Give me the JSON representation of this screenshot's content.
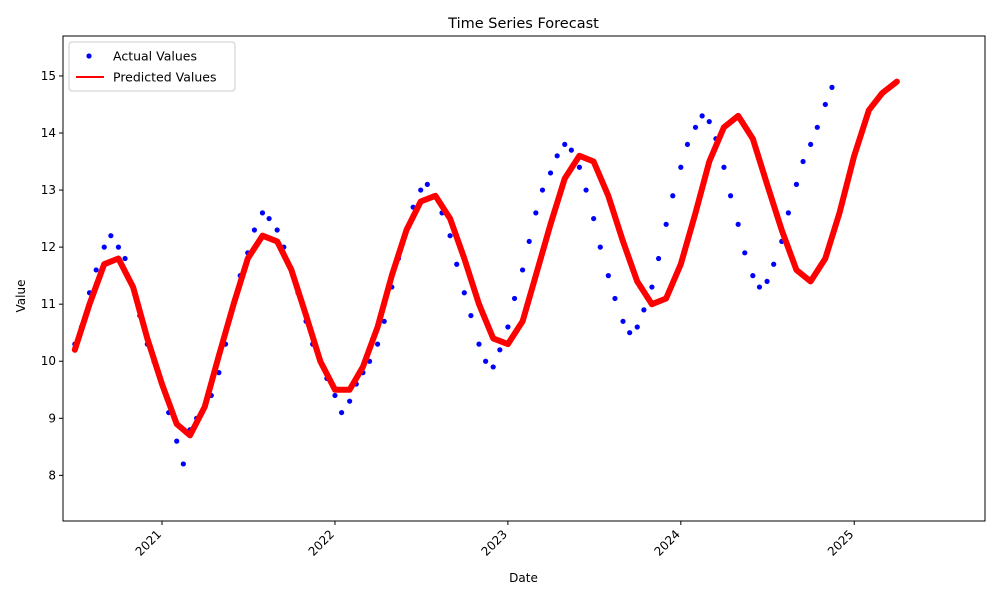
{
  "chart_data": {
    "type": "line",
    "title": "Time Series Forecast",
    "xlabel": "Date",
    "ylabel": "Value",
    "x_range": [
      "2020-06-06",
      "2025-10-04"
    ],
    "ylim": [
      7.2,
      15.7
    ],
    "x_ticks": [
      {
        "date": "2021-01-01",
        "label": "2021"
      },
      {
        "date": "2022-01-01",
        "label": "2022"
      },
      {
        "date": "2023-01-01",
        "label": "2023"
      },
      {
        "date": "2024-01-01",
        "label": "2024"
      },
      {
        "date": "2025-01-01",
        "label": "2025"
      }
    ],
    "y_ticks": [
      8,
      9,
      10,
      11,
      12,
      13,
      14,
      15
    ],
    "grid": false,
    "legend": {
      "placement": "top-left",
      "entries": [
        "Actual Values",
        "Predicted Values"
      ]
    },
    "colors": {
      "actual": "#0000ff",
      "predicted": "#ff0000"
    },
    "series": [
      {
        "name": "Actual Values",
        "marker": "dot",
        "points": [
          [
            "2020-07-01",
            10.3
          ],
          [
            "2020-07-15",
            10.6
          ],
          [
            "2020-08-01",
            11.2
          ],
          [
            "2020-08-15",
            11.6
          ],
          [
            "2020-09-01",
            12.0
          ],
          [
            "2020-09-15",
            12.2
          ],
          [
            "2020-10-01",
            12.0
          ],
          [
            "2020-10-15",
            11.8
          ],
          [
            "2020-11-01",
            11.3
          ],
          [
            "2020-11-15",
            10.8
          ],
          [
            "2020-12-01",
            10.3
          ],
          [
            "2020-12-15",
            10.0
          ],
          [
            "2021-01-01",
            9.6
          ],
          [
            "2021-01-15",
            9.1
          ],
          [
            "2021-02-01",
            8.6
          ],
          [
            "2021-02-15",
            8.2
          ],
          [
            "2021-03-01",
            8.8
          ],
          [
            "2021-03-15",
            9.0
          ],
          [
            "2021-04-01",
            9.2
          ],
          [
            "2021-04-15",
            9.4
          ],
          [
            "2021-05-01",
            9.8
          ],
          [
            "2021-05-15",
            10.3
          ],
          [
            "2021-06-01",
            11.0
          ],
          [
            "2021-06-15",
            11.5
          ],
          [
            "2021-07-01",
            11.9
          ],
          [
            "2021-07-15",
            12.3
          ],
          [
            "2021-08-01",
            12.6
          ],
          [
            "2021-08-15",
            12.5
          ],
          [
            "2021-09-01",
            12.3
          ],
          [
            "2021-09-15",
            12.0
          ],
          [
            "2021-10-01",
            11.6
          ],
          [
            "2021-10-15",
            11.2
          ],
          [
            "2021-11-01",
            10.7
          ],
          [
            "2021-11-15",
            10.3
          ],
          [
            "2021-12-01",
            10.0
          ],
          [
            "2021-12-15",
            9.7
          ],
          [
            "2022-01-01",
            9.4
          ],
          [
            "2022-01-15",
            9.1
          ],
          [
            "2022-02-01",
            9.3
          ],
          [
            "2022-02-15",
            9.6
          ],
          [
            "2022-03-01",
            9.8
          ],
          [
            "2022-03-15",
            10.0
          ],
          [
            "2022-04-01",
            10.3
          ],
          [
            "2022-04-15",
            10.7
          ],
          [
            "2022-05-01",
            11.3
          ],
          [
            "2022-05-15",
            11.8
          ],
          [
            "2022-06-01",
            12.3
          ],
          [
            "2022-06-15",
            12.7
          ],
          [
            "2022-07-01",
            13.0
          ],
          [
            "2022-07-15",
            13.1
          ],
          [
            "2022-08-01",
            12.9
          ],
          [
            "2022-08-15",
            12.6
          ],
          [
            "2022-09-01",
            12.2
          ],
          [
            "2022-09-15",
            11.7
          ],
          [
            "2022-10-01",
            11.2
          ],
          [
            "2022-10-15",
            10.8
          ],
          [
            "2022-11-01",
            10.3
          ],
          [
            "2022-11-15",
            10.0
          ],
          [
            "2022-12-01",
            9.9
          ],
          [
            "2022-12-15",
            10.2
          ],
          [
            "2023-01-01",
            10.6
          ],
          [
            "2023-01-15",
            11.1
          ],
          [
            "2023-02-01",
            11.6
          ],
          [
            "2023-02-15",
            12.1
          ],
          [
            "2023-03-01",
            12.6
          ],
          [
            "2023-03-15",
            13.0
          ],
          [
            "2023-04-01",
            13.3
          ],
          [
            "2023-04-15",
            13.6
          ],
          [
            "2023-05-01",
            13.8
          ],
          [
            "2023-05-15",
            13.7
          ],
          [
            "2023-06-01",
            13.4
          ],
          [
            "2023-06-15",
            13.0
          ],
          [
            "2023-07-01",
            12.5
          ],
          [
            "2023-07-15",
            12.0
          ],
          [
            "2023-08-01",
            11.5
          ],
          [
            "2023-08-15",
            11.1
          ],
          [
            "2023-09-01",
            10.7
          ],
          [
            "2023-09-15",
            10.5
          ],
          [
            "2023-10-01",
            10.6
          ],
          [
            "2023-10-15",
            10.9
          ],
          [
            "2023-11-01",
            11.3
          ],
          [
            "2023-11-15",
            11.8
          ],
          [
            "2023-12-01",
            12.4
          ],
          [
            "2023-12-15",
            12.9
          ],
          [
            "2024-01-01",
            13.4
          ],
          [
            "2024-01-15",
            13.8
          ],
          [
            "2024-02-01",
            14.1
          ],
          [
            "2024-02-15",
            14.3
          ],
          [
            "2024-03-01",
            14.2
          ],
          [
            "2024-03-15",
            13.9
          ],
          [
            "2024-04-01",
            13.4
          ],
          [
            "2024-04-15",
            12.9
          ],
          [
            "2024-05-01",
            12.4
          ],
          [
            "2024-05-15",
            11.9
          ],
          [
            "2024-06-01",
            11.5
          ],
          [
            "2024-06-15",
            11.3
          ],
          [
            "2024-07-01",
            11.4
          ],
          [
            "2024-07-15",
            11.7
          ],
          [
            "2024-08-01",
            12.1
          ],
          [
            "2024-08-15",
            12.6
          ],
          [
            "2024-09-01",
            13.1
          ],
          [
            "2024-09-15",
            13.5
          ],
          [
            "2024-10-01",
            13.8
          ],
          [
            "2024-10-15",
            14.1
          ],
          [
            "2024-11-01",
            14.5
          ],
          [
            "2024-11-15",
            14.8
          ]
        ]
      },
      {
        "name": "Predicted Values",
        "marker": "line",
        "points": [
          [
            "2020-07-01",
            10.2
          ],
          [
            "2020-08-01",
            11.0
          ],
          [
            "2020-09-01",
            11.7
          ],
          [
            "2020-10-01",
            11.8
          ],
          [
            "2020-11-01",
            11.3
          ],
          [
            "2020-12-01",
            10.4
          ],
          [
            "2021-01-01",
            9.6
          ],
          [
            "2021-02-01",
            8.9
          ],
          [
            "2021-03-01",
            8.7
          ],
          [
            "2021-04-01",
            9.2
          ],
          [
            "2021-05-01",
            10.1
          ],
          [
            "2021-06-01",
            11.0
          ],
          [
            "2021-07-01",
            11.8
          ],
          [
            "2021-08-01",
            12.2
          ],
          [
            "2021-09-01",
            12.1
          ],
          [
            "2021-10-01",
            11.6
          ],
          [
            "2021-11-01",
            10.8
          ],
          [
            "2021-12-01",
            10.0
          ],
          [
            "2022-01-01",
            9.5
          ],
          [
            "2022-02-01",
            9.5
          ],
          [
            "2022-03-01",
            9.9
          ],
          [
            "2022-04-01",
            10.6
          ],
          [
            "2022-05-01",
            11.5
          ],
          [
            "2022-06-01",
            12.3
          ],
          [
            "2022-07-01",
            12.8
          ],
          [
            "2022-08-01",
            12.9
          ],
          [
            "2022-09-01",
            12.5
          ],
          [
            "2022-10-01",
            11.8
          ],
          [
            "2022-11-01",
            11.0
          ],
          [
            "2022-12-01",
            10.4
          ],
          [
            "2023-01-01",
            10.3
          ],
          [
            "2023-02-01",
            10.7
          ],
          [
            "2023-03-01",
            11.5
          ],
          [
            "2023-04-01",
            12.4
          ],
          [
            "2023-05-01",
            13.2
          ],
          [
            "2023-06-01",
            13.6
          ],
          [
            "2023-07-01",
            13.5
          ],
          [
            "2023-08-01",
            12.9
          ],
          [
            "2023-09-01",
            12.1
          ],
          [
            "2023-10-01",
            11.4
          ],
          [
            "2023-11-01",
            11.0
          ],
          [
            "2023-12-01",
            11.1
          ],
          [
            "2024-01-01",
            11.7
          ],
          [
            "2024-02-01",
            12.6
          ],
          [
            "2024-03-01",
            13.5
          ],
          [
            "2024-04-01",
            14.1
          ],
          [
            "2024-05-01",
            14.3
          ],
          [
            "2024-06-01",
            13.9
          ],
          [
            "2024-07-01",
            13.1
          ],
          [
            "2024-08-01",
            12.3
          ],
          [
            "2024-09-01",
            11.6
          ],
          [
            "2024-10-01",
            11.4
          ],
          [
            "2024-11-01",
            11.8
          ],
          [
            "2024-12-01",
            12.6
          ],
          [
            "2025-01-01",
            13.6
          ],
          [
            "2025-02-01",
            14.4
          ],
          [
            "2025-03-01",
            14.7
          ],
          [
            "2025-04-01",
            14.9
          ]
        ]
      }
    ]
  }
}
